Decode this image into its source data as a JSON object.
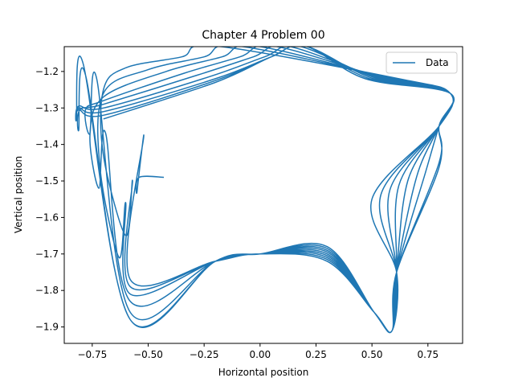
{
  "chart_data": {
    "type": "line",
    "title": "Chapter 4 Problem 00",
    "xlabel": "Horizontal position",
    "ylabel": "Vertical position",
    "xlim": [
      -0.875,
      0.905
    ],
    "ylim": [
      -1.945,
      -1.132
    ],
    "x_ticks": [
      -0.75,
      -0.5,
      -0.25,
      0.0,
      0.25,
      0.5,
      0.75
    ],
    "x_tick_labels": [
      "−0.75",
      "−0.50",
      "−0.25",
      "0.00",
      "0.25",
      "0.50",
      "0.75"
    ],
    "y_ticks": [
      -1.9,
      -1.8,
      -1.7,
      -1.6,
      -1.5,
      -1.4,
      -1.3,
      -1.2
    ],
    "y_tick_labels": [
      "−1.9",
      "−1.8",
      "−1.7",
      "−1.6",
      "−1.5",
      "−1.4",
      "−1.3",
      "−1.2"
    ],
    "grid": false,
    "legend_position": "top-right",
    "series": [
      {
        "name": "Data",
        "color": "#1f77b4",
        "trajectory": {
          "start": [
            -0.43,
            -1.49
          ],
          "left_turns": [
            [
              -0.55,
              -1.53
            ],
            [
              -0.6,
              -1.65
            ],
            [
              -0.63,
              -1.71
            ],
            [
              -0.72,
              -1.52
            ],
            [
              -0.76,
              -1.37
            ],
            [
              -0.81,
              -1.36
            ],
            [
              -0.82,
              -1.33
            ]
          ],
          "top_peaks_x": [
            -0.35,
            -0.25,
            -0.17,
            -0.09,
            -0.03,
            0.02,
            0.05,
            0.05,
            0.05
          ],
          "top_peak_y": -1.16,
          "right_corner": [
            0.85,
            -1.26
          ],
          "right_loop_x": [
            0.5,
            0.54,
            0.58,
            0.62,
            0.66,
            0.7,
            0.74,
            0.8
          ],
          "bottom_tip": [
            0.59,
            -1.91
          ],
          "bottom_min_y": [
            -1.77,
            -1.79,
            -1.81,
            -1.83,
            -1.86,
            -1.88
          ],
          "crossing_point": [
            0.0,
            -1.7
          ]
        }
      }
    ]
  }
}
